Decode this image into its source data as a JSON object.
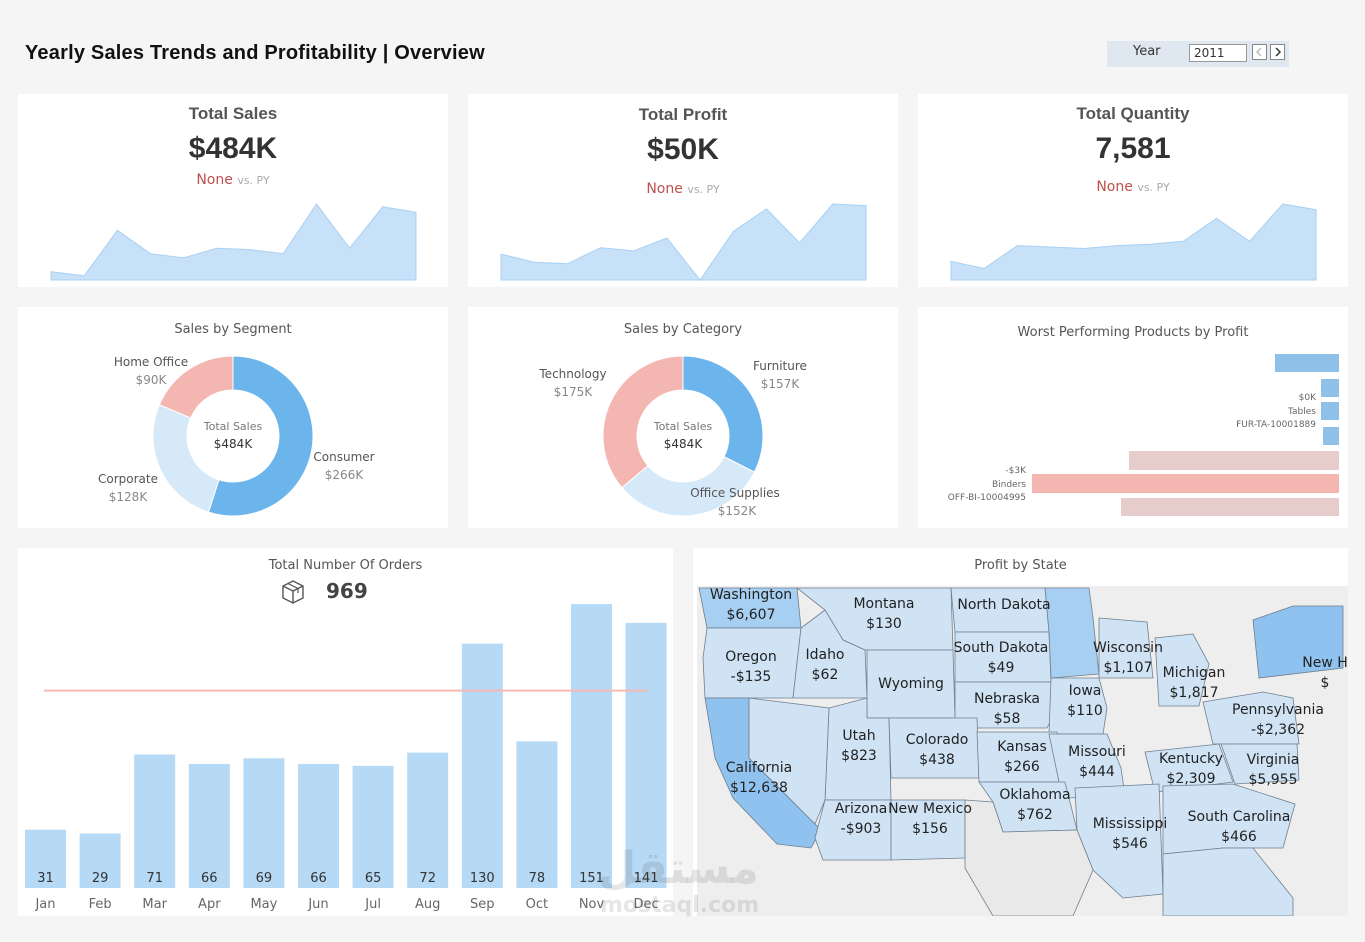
{
  "header": {
    "title": "Yearly Sales Trends and Profitability | Overview",
    "year_label": "Year",
    "year_value": "2011",
    "prev_icon": "chevron-left-icon",
    "next_icon": "chevron-right-icon"
  },
  "kpis": [
    {
      "title": "Total Sales",
      "value": "$484K",
      "delta": "None",
      "vs": "vs. PY",
      "trend": [
        6,
        3,
        36,
        19,
        16,
        23,
        22,
        19,
        55,
        23,
        53,
        49
      ]
    },
    {
      "title": "Total Profit",
      "value": "$50K",
      "delta": "None",
      "vs": "vs. PY",
      "trend": [
        11,
        6,
        5,
        15,
        13,
        21,
        -5,
        25,
        39,
        18,
        42,
        41
      ]
    },
    {
      "title": "Total Quantity",
      "value": "7,581",
      "delta": "None",
      "vs": "vs. PY",
      "trend": [
        13,
        8,
        24,
        23,
        22,
        24,
        25,
        27,
        43,
        27,
        53,
        49
      ]
    }
  ],
  "segment": {
    "title": "Sales by Segment",
    "center_label": "Total Sales",
    "center_value": "$484K",
    "slices": [
      {
        "name": "Consumer",
        "label": "$266K",
        "value": 266,
        "color": "#6cb4ec"
      },
      {
        "name": "Corporate",
        "label": "$128K",
        "value": 128,
        "color": "#d6e9f8"
      },
      {
        "name": "Home Office",
        "label": "$90K",
        "value": 90,
        "color": "#f4b6b0"
      }
    ]
  },
  "category": {
    "title": "Sales by Category",
    "center_label": "Total Sales",
    "center_value": "$484K",
    "slices": [
      {
        "name": "Furniture",
        "label": "$157K",
        "value": 157,
        "color": "#6cb4ec"
      },
      {
        "name": "Office Supplies",
        "label": "$152K",
        "value": 152,
        "color": "#d6e9f8"
      },
      {
        "name": "Technology",
        "label": "$175K",
        "value": 175,
        "color": "#f4b6b0"
      }
    ]
  },
  "worst": {
    "title": "Worst Performing Products by Profit",
    "bars": [
      {
        "value": 64,
        "color": "#8fc1e8"
      },
      {
        "value": 18,
        "color": "#8fc1e8"
      },
      {
        "value": 18,
        "color": "#8fc1e8"
      },
      {
        "value": 16,
        "color": "#8fc1e8"
      },
      {
        "value": 210,
        "color": "#e6cdcc"
      },
      {
        "value": 307,
        "color": "#f4b6b0"
      },
      {
        "value": 218,
        "color": "#e6cdcc"
      }
    ],
    "labels": [
      {
        "lines": [
          "$0K",
          "Tables",
          "FUR-TA-10001889"
        ],
        "side": "right",
        "row": 2
      },
      {
        "lines": [
          "-$3K",
          "Binders",
          "OFF-BI-10004995"
        ],
        "side": "left",
        "row": 5
      }
    ]
  },
  "orders": {
    "title": "Total Number Of Orders",
    "total": "969",
    "box_icon": "package-icon",
    "reference_value": 105
  },
  "map": {
    "title": "Profit by State",
    "states": [
      {
        "name": "Washington",
        "value": "$6,607"
      },
      {
        "name": "Montana",
        "value": "$130"
      },
      {
        "name": "North Dakota",
        "value": ""
      },
      {
        "name": "Oregon",
        "value": "-$135"
      },
      {
        "name": "Idaho",
        "value": "$62"
      },
      {
        "name": "South Dakota",
        "value": "$49"
      },
      {
        "name": "Wisconsin",
        "value": "$1,107"
      },
      {
        "name": "Michigan",
        "value": "$1,817"
      },
      {
        "name": "New H",
        "value": "$"
      },
      {
        "name": "Wyoming",
        "value": ""
      },
      {
        "name": "Nebraska",
        "value": "$58"
      },
      {
        "name": "Iowa",
        "value": "$110"
      },
      {
        "name": "Pennsylvania",
        "value": "-$2,362"
      },
      {
        "name": "Utah",
        "value": "$823"
      },
      {
        "name": "Colorado",
        "value": "$438"
      },
      {
        "name": "Kansas",
        "value": "$266"
      },
      {
        "name": "Missouri",
        "value": "$444"
      },
      {
        "name": "Kentucky",
        "value": "$2,309"
      },
      {
        "name": "Virginia",
        "value": "$5,955"
      },
      {
        "name": "California",
        "value": "$12,638"
      },
      {
        "name": "Oklahoma",
        "value": "$762"
      },
      {
        "name": "Arizona",
        "value": "-$903"
      },
      {
        "name": "New Mexico",
        "value": "$156"
      },
      {
        "name": "Mississippi",
        "value": "$546"
      },
      {
        "name": "South Carolina",
        "value": "$466"
      }
    ]
  },
  "watermark": {
    "arabic": "مستقل",
    "latin": "mostaql.com"
  },
  "chart_data": {
    "type": "bar",
    "title": "Total Number Of Orders",
    "categories": [
      "Jan",
      "Feb",
      "Mar",
      "Apr",
      "May",
      "Jun",
      "Jul",
      "Aug",
      "Sep",
      "Oct",
      "Nov",
      "Dec"
    ],
    "values": [
      31,
      29,
      71,
      66,
      69,
      66,
      65,
      72,
      130,
      78,
      151,
      141
    ],
    "ylim": [
      0,
      160
    ]
  }
}
